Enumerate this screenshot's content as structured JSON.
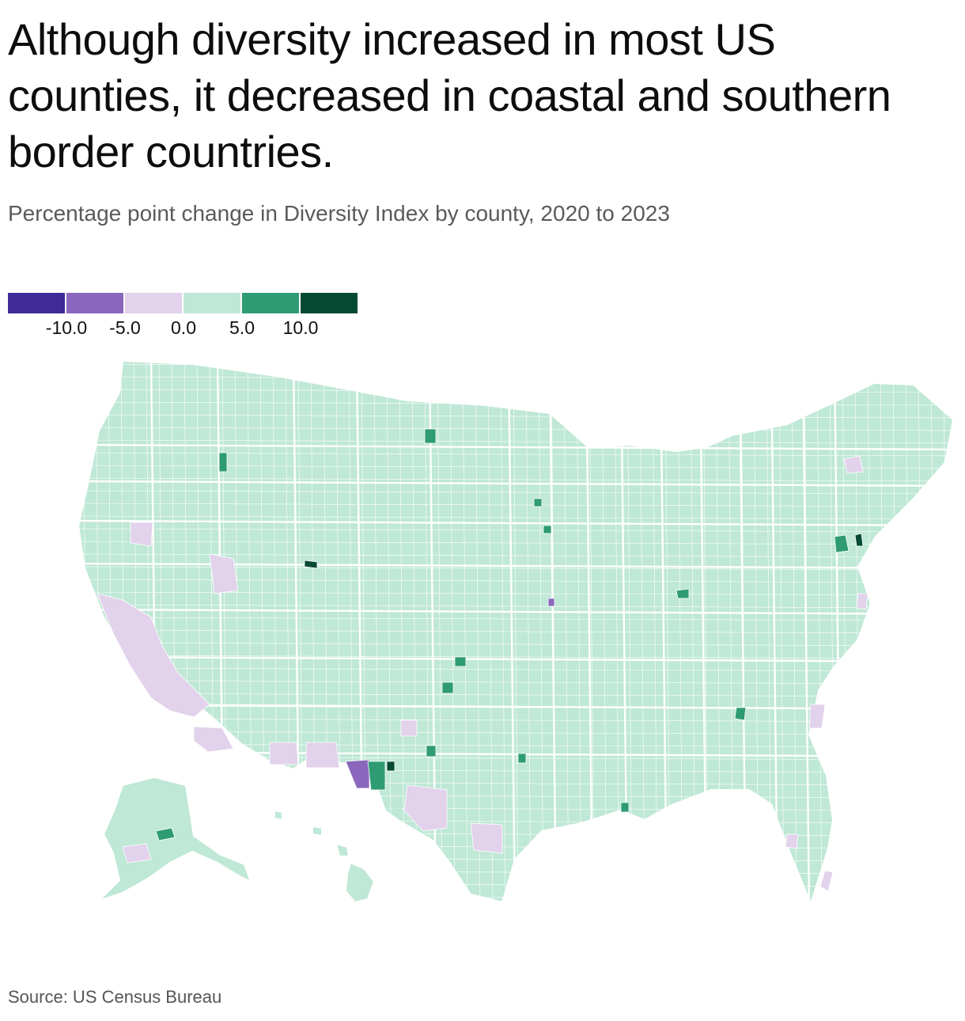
{
  "header": {
    "title": "Although diversity increased in most US counties, it decreased in coastal and southern border countries.",
    "subtitle": "Percentage point change in Diversity Index by county, 2020 to 2023"
  },
  "legend": {
    "bins": [
      {
        "color": "#3f2a96"
      },
      {
        "color": "#8a67bd"
      },
      {
        "color": "#e2d2eb"
      },
      {
        "color": "#bfe8d6"
      },
      {
        "color": "#2f9b73"
      },
      {
        "color": "#064a34"
      }
    ],
    "ticks": [
      "-10.0",
      "-5.0",
      "0.0",
      "5.0",
      "10.0"
    ]
  },
  "map": {
    "colors": {
      "increase_small": "#bfe8d6",
      "decrease_small": "#e2d2eb",
      "decrease_medium": "#8a67bd",
      "increase_medium": "#2f9b73",
      "increase_large": "#064a34",
      "border": "#ffffff"
    }
  },
  "footer": {
    "source": "Source: US Census Bureau"
  }
}
